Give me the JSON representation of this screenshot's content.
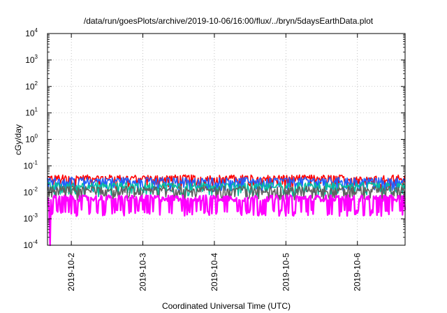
{
  "chart_data": {
    "type": "line",
    "title": "/data/run/goesPlots/archive/2019-10-06/16:00/flux/../bryn/5daysEarthData.plot",
    "xlabel": "Coordinated Universal Time (UTC)",
    "ylabel": "cGy/day",
    "y_scale": "log",
    "ylim": [
      0.0001,
      10000
    ],
    "y_ticks": [
      {
        "base": "10",
        "exp": "-4",
        "value": 0.0001
      },
      {
        "base": "10",
        "exp": "-3",
        "value": 0.001
      },
      {
        "base": "10",
        "exp": "-2",
        "value": 0.01
      },
      {
        "base": "10",
        "exp": "-1",
        "value": 0.1
      },
      {
        "base": "10",
        "exp": "0",
        "value": 1
      },
      {
        "base": "10",
        "exp": "1",
        "value": 10
      },
      {
        "base": "10",
        "exp": "2",
        "value": 100
      },
      {
        "base": "10",
        "exp": "3",
        "value": 1000
      },
      {
        "base": "10",
        "exp": "4",
        "value": 10000
      }
    ],
    "xlim": [
      "2019-10-01T16:00",
      "2019-10-06T16:00"
    ],
    "x_ticks": [
      "2019-10-2",
      "2019-10-3",
      "2019-10-4",
      "2019-10-5",
      "2019-10-6"
    ],
    "grid": true,
    "series": [
      {
        "color": "#ff0000",
        "level": 0.035
      },
      {
        "color": "#2060ff",
        "level": 0.028
      },
      {
        "color": "#00c0a0",
        "level": 0.018
      },
      {
        "color": "#606060",
        "level": 0.013
      },
      {
        "color": "#ff00ff",
        "level": 0.006
      }
    ]
  }
}
